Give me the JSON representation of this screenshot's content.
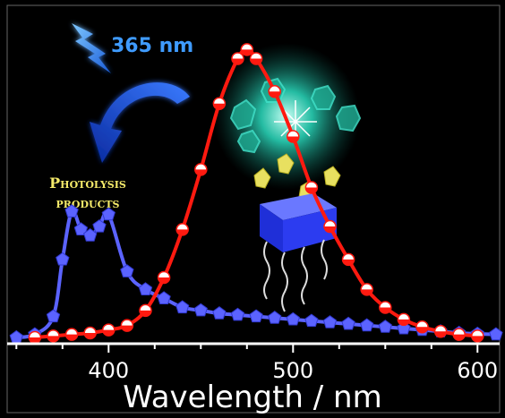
{
  "chart_data": {
    "type": "line",
    "xlabel": "Wavelength / nm",
    "ylabel": "",
    "xlim": [
      345,
      612
    ],
    "ylim": [
      0,
      1.0
    ],
    "grid": false,
    "x_ticks": [
      {
        "value": 400,
        "label": "400"
      },
      {
        "value": 500,
        "label": "500"
      },
      {
        "value": 600,
        "label": "600"
      }
    ],
    "annotations": {
      "excitation": "365 nm",
      "products_line1": "Photolysis",
      "products_line2": "products"
    },
    "series": [
      {
        "color": "#5b63ff",
        "marker": "pentagon",
        "x": [
          350,
          360,
          370,
          375,
          380,
          385,
          390,
          395,
          400,
          410,
          420,
          430,
          440,
          450,
          460,
          470,
          480,
          490,
          500,
          510,
          520,
          530,
          540,
          550,
          560,
          570,
          580,
          590,
          600,
          610
        ],
        "y": [
          0.0,
          0.01,
          0.07,
          0.26,
          0.42,
          0.36,
          0.34,
          0.37,
          0.41,
          0.22,
          0.16,
          0.13,
          0.1,
          0.09,
          0.08,
          0.075,
          0.07,
          0.065,
          0.06,
          0.055,
          0.05,
          0.045,
          0.04,
          0.035,
          0.03,
          0.025,
          0.02,
          0.015,
          0.012,
          0.01
        ]
      },
      {
        "color": "#ff1a10",
        "marker": "circle",
        "x": [
          360,
          370,
          380,
          390,
          400,
          410,
          420,
          430,
          440,
          450,
          460,
          470,
          475,
          480,
          490,
          500,
          510,
          520,
          530,
          540,
          550,
          560,
          570,
          580,
          590,
          600
        ],
        "y": [
          0.0,
          0.005,
          0.01,
          0.015,
          0.025,
          0.04,
          0.09,
          0.2,
          0.36,
          0.56,
          0.78,
          0.93,
          0.96,
          0.93,
          0.82,
          0.67,
          0.5,
          0.37,
          0.26,
          0.16,
          0.1,
          0.06,
          0.035,
          0.02,
          0.01,
          0.005
        ]
      }
    ]
  }
}
